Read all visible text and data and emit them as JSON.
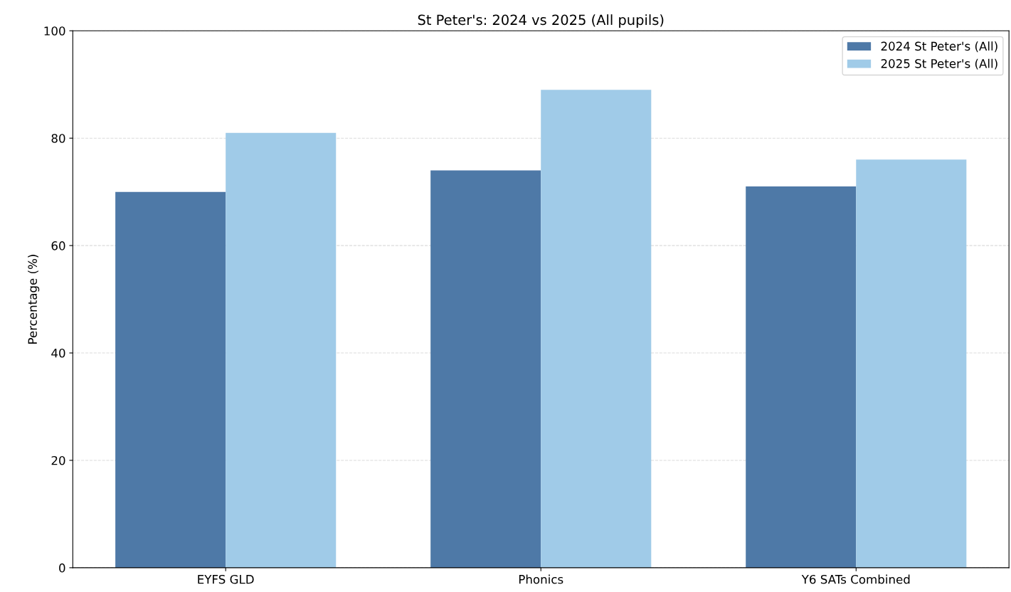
{
  "chart_data": {
    "type": "bar",
    "title": "St Peter's: 2024 vs 2025 (All pupils)",
    "ylabel": "Percentage (%)",
    "categories": [
      "EYFS GLD",
      "Phonics",
      "Y6 SATs Combined"
    ],
    "series": [
      {
        "name": "2024 St Peter's (All)",
        "color": "#4e79a7",
        "values": [
          70,
          74,
          71
        ]
      },
      {
        "name": "2025 St Peter's (All)",
        "color": "#a0cbe8",
        "values": [
          81,
          89,
          76
        ]
      }
    ],
    "ylim": [
      0,
      100
    ],
    "yticks": [
      0,
      20,
      40,
      60,
      80,
      100
    ],
    "grid": "y",
    "legend": "top right"
  }
}
